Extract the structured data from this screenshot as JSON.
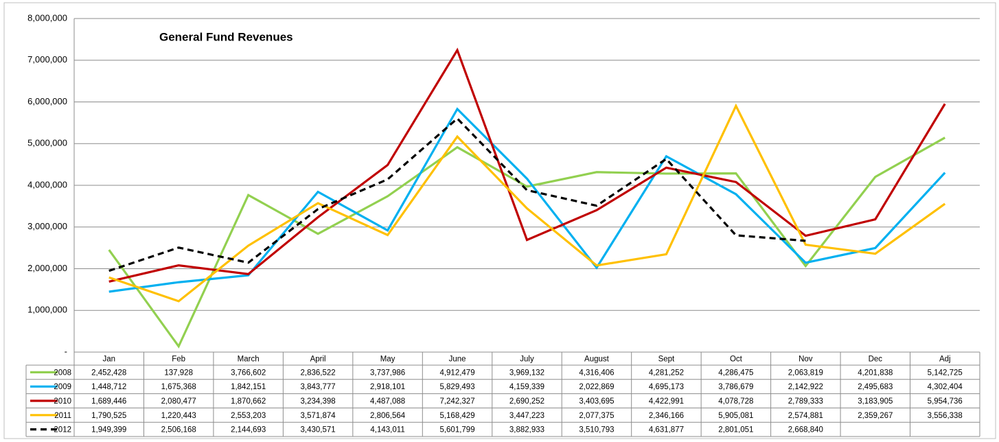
{
  "chart_data": {
    "type": "line",
    "title": "General Fund Revenues",
    "categories": [
      "Jan",
      "Feb",
      "March",
      "April",
      "May",
      "June",
      "July",
      "August",
      "Sept",
      "Oct",
      "Nov",
      "Dec",
      "Adj"
    ],
    "ylim": [
      0,
      8000000
    ],
    "yticks": [
      {
        "value": 0,
        "label": "-"
      },
      {
        "value": 1000000,
        "label": "1,000,000"
      },
      {
        "value": 2000000,
        "label": "2,000,000"
      },
      {
        "value": 3000000,
        "label": "3,000,000"
      },
      {
        "value": 4000000,
        "label": "4,000,000"
      },
      {
        "value": 5000000,
        "label": "5,000,000"
      },
      {
        "value": 6000000,
        "label": "6,000,000"
      },
      {
        "value": 7000000,
        "label": "7,000,000"
      },
      {
        "value": 8000000,
        "label": "8,000,000"
      }
    ],
    "grid": true,
    "series": [
      {
        "name": "2008",
        "color": "#92d050",
        "dashed": false,
        "values": [
          2452428,
          137928,
          3766602,
          2836522,
          3737986,
          4912479,
          3969132,
          4316406,
          4281252,
          4286475,
          2063819,
          4201838,
          5142725
        ],
        "value_labels": [
          "2,452,428",
          "137,928",
          "3,766,602",
          "2,836,522",
          "3,737,986",
          "4,912,479",
          "3,969,132",
          "4,316,406",
          "4,281,252",
          "4,286,475",
          "2,063,819",
          "4,201,838",
          "5,142,725"
        ]
      },
      {
        "name": "2009",
        "color": "#00b0f0",
        "dashed": false,
        "values": [
          1448712,
          1675368,
          1842151,
          3843777,
          2918101,
          5829493,
          4159339,
          2022869,
          4695173,
          3786679,
          2142922,
          2495683,
          4302404
        ],
        "value_labels": [
          "1,448,712",
          "1,675,368",
          "1,842,151",
          "3,843,777",
          "2,918,101",
          "5,829,493",
          "4,159,339",
          "2,022,869",
          "4,695,173",
          "3,786,679",
          "2,142,922",
          "2,495,683",
          "4,302,404"
        ]
      },
      {
        "name": "2010",
        "color": "#c00000",
        "dashed": false,
        "values": [
          1689446,
          2080477,
          1870662,
          3234398,
          4487088,
          7242327,
          2690252,
          3403695,
          4422991,
          4078728,
          2789333,
          3183905,
          5954736
        ],
        "value_labels": [
          "1,689,446",
          "2,080,477",
          "1,870,662",
          "3,234,398",
          "4,487,088",
          "7,242,327",
          "2,690,252",
          "3,403,695",
          "4,422,991",
          "4,078,728",
          "2,789,333",
          "3,183,905",
          "5,954,736"
        ]
      },
      {
        "name": "2011",
        "color": "#ffc000",
        "dashed": false,
        "values": [
          1790525,
          1220443,
          2553203,
          3571874,
          2806564,
          5168429,
          3447223,
          2077375,
          2346166,
          5905081,
          2574881,
          2359267,
          3556338
        ],
        "value_labels": [
          "1,790,525",
          "1,220,443",
          "2,553,203",
          "3,571,874",
          "2,806,564",
          "5,168,429",
          "3,447,223",
          "2,077,375",
          "2,346,166",
          "5,905,081",
          "2,574,881",
          "2,359,267",
          "3,556,338"
        ]
      },
      {
        "name": "2012",
        "color": "#000000",
        "dashed": true,
        "values": [
          1949399,
          2506168,
          2144693,
          3430571,
          4143011,
          5601799,
          3882933,
          3510793,
          4631877,
          2801051,
          2668840,
          null,
          null
        ],
        "value_labels": [
          "1,949,399",
          "2,506,168",
          "2,144,693",
          "3,430,571",
          "4,143,011",
          "5,601,799",
          "3,882,933",
          "3,510,793",
          "4,631,877",
          "2,801,051",
          "2,668,840",
          null,
          null
        ]
      }
    ]
  }
}
